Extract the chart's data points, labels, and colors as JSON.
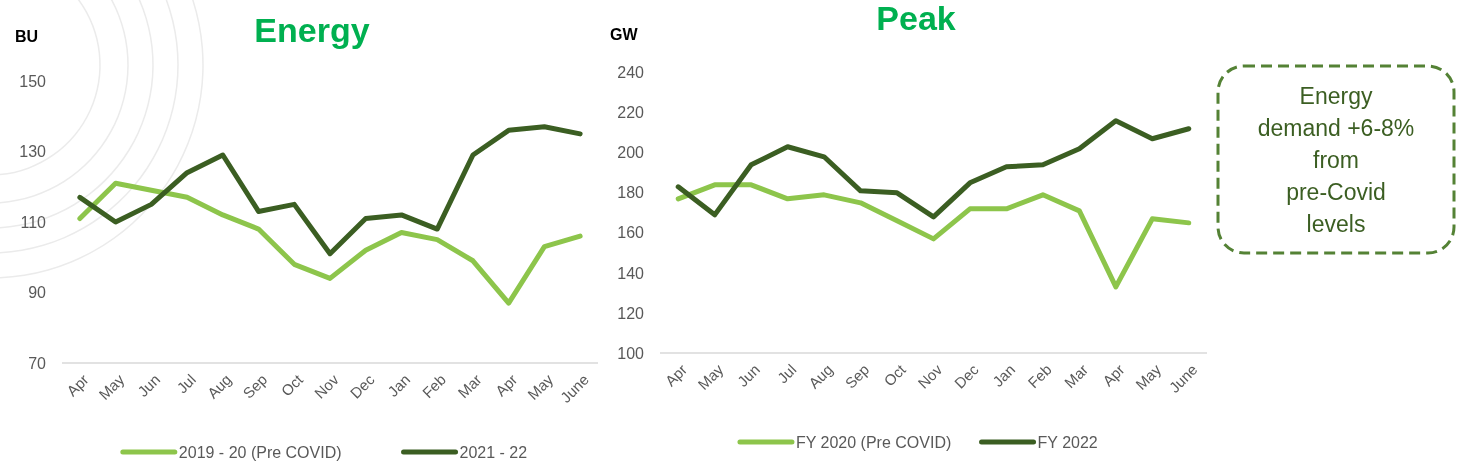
{
  "chart_data": [
    {
      "type": "line",
      "title": "Energy",
      "ylabel": "BU",
      "categories": [
        "Apr",
        "May",
        "Jun",
        "Jul",
        "Aug",
        "Sep",
        "Oct",
        "Nov",
        "Dec",
        "Jan",
        "Feb",
        "Mar",
        "Apr",
        "May",
        "June"
      ],
      "series": [
        {
          "name": "2019 - 20 (Pre COVID)",
          "color": "#8dc54b",
          "values": [
            111,
            121,
            119,
            117,
            112,
            108,
            98,
            94,
            102,
            107,
            105,
            99,
            87,
            103,
            106
          ]
        },
        {
          "name": "2021 - 22",
          "color": "#3b5e22",
          "values": [
            117,
            110,
            115,
            124,
            129,
            113,
            115,
            101,
            111,
            112,
            108,
            129,
            136,
            137,
            135
          ]
        }
      ],
      "ylim": [
        70,
        150
      ],
      "yticks": [
        70,
        90,
        110,
        130,
        150
      ],
      "legend": "bottom"
    },
    {
      "type": "line",
      "title": "Peak",
      "ylabel": "GW",
      "categories": [
        "Apr",
        "May",
        "Jun",
        "Jul",
        "Aug",
        "Sep",
        "Oct",
        "Nov",
        "Dec",
        "Jan",
        "Feb",
        "Mar",
        "Apr",
        "May",
        "June"
      ],
      "series": [
        {
          "name": "FY 2020 (Pre COVID)",
          "color": "#8dc54b",
          "values": [
            177,
            184,
            184,
            177,
            179,
            175,
            166,
            157,
            172,
            172,
            179,
            171,
            133,
            167,
            165
          ]
        },
        {
          "name": "FY 2022",
          "color": "#3b5e22",
          "values": [
            183,
            169,
            194,
            203,
            198,
            181,
            180,
            168,
            185,
            193,
            194,
            202,
            216,
            207,
            212
          ]
        }
      ],
      "ylim": [
        100,
        240
      ],
      "yticks": [
        100,
        120,
        140,
        160,
        180,
        200,
        220,
        240
      ],
      "legend": "bottom"
    },
    {
      "type": "other",
      "annotations": [
        "Energy\ndemand +6-8%\nfrom\npre-Covid\nlevels"
      ]
    }
  ]
}
